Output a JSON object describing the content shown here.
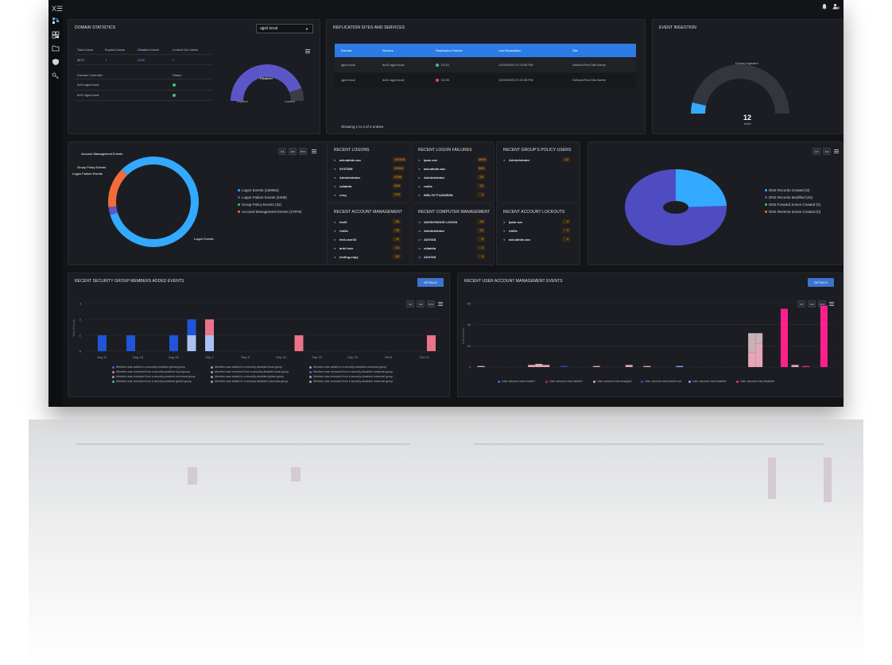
{
  "topbar": {
    "bell_icon": "bell-icon",
    "user_icon": "user-settings-icon"
  },
  "sidebar": {
    "items": [
      "expand-icon",
      "hierarchy-icon",
      "grid-icon",
      "folder-icon",
      "shield-icon",
      "key-icon"
    ],
    "expand_label": "X☰"
  },
  "domain_stats": {
    "title": "DOMAIN STATISTICS",
    "domain_select": "ajpcl.local",
    "headers": [
      "Total Users",
      "Expired Users",
      "Disabled Users",
      "Locked Out Users"
    ],
    "values": [
      "5872",
      "1",
      "6056",
      "0"
    ],
    "dc_headers": [
      "Domain Controller",
      "Status"
    ],
    "dcs": [
      "dc00.ajpcl.local",
      "dc01.ajpcl.local"
    ],
    "gauge": {
      "label_disabled": "Disabled",
      "label_expired": "Expired",
      "label_locked": "Locked"
    }
  },
  "replication": {
    "title": "REPLICATION SITES AND SERVICES",
    "headers": [
      "Domain",
      "Servers",
      "Replication Partner",
      "Last Replication",
      "Site"
    ],
    "rows": [
      {
        "domain": "ajpcl.local",
        "server": "dc00.ajpcl.local",
        "partner": "DC01",
        "last": "11/09/2025 07:23:05 PM",
        "site": "Default-First-Site-Name"
      },
      {
        "domain": "ajpcl.local",
        "server": "dc01.ajpcl.local",
        "partner": "DC00",
        "last": "11/09/2025 07:23:35 PM",
        "site": "Default-First-Site-Name"
      }
    ],
    "footer": "Showing 1 to 2 of 2 entries"
  },
  "event_ingestion": {
    "title": "EVENT INGESTION",
    "gauge_label": "Events Ingested",
    "value": "12",
    "unit": "evt/s",
    "fraction": 0.08
  },
  "logon_donut": {
    "range_buttons": [
      "1d",
      "1w",
      "6m"
    ],
    "labels": {
      "account_mgmt": "Account Management Events",
      "group_policy": "Group Policy Events",
      "logon_failure": "Logon Failure Events",
      "logon": "Logon Events"
    },
    "legend": [
      "Logon Events (159094)",
      "Logon Failure Events (5408)",
      "Group Policy Events (32)",
      "Account Management Events (27976)"
    ],
    "colors": [
      "#33a9ff",
      "#5b56c8",
      "#3fc37a",
      "#f26c3a"
    ],
    "values": [
      159094,
      5408,
      32,
      27976
    ]
  },
  "recent_logons": {
    "title": "RECENT LOGONS",
    "rows": [
      [
        "adv.admin.acc",
        "142918"
      ],
      [
        "SYSTEM",
        "10913"
      ],
      [
        "Administrator",
        "4756"
      ],
      [
        "cdiatefa",
        "246"
      ],
      [
        "renq",
        "179"
      ]
    ]
  },
  "recent_logon_failures": {
    "title": "RECENT LOGON FAILURES",
    "rows": [
      [
        "ipam.svc",
        "4804"
      ],
      [
        "adv.admin.acc",
        "559"
      ],
      [
        "Administrator",
        "15"
      ],
      [
        "rmills",
        "11"
      ],
      [
        "WIN-7K7T4JK8R3N",
        "4"
      ]
    ]
  },
  "recent_gp_users": {
    "title": "RECENT GROUP'S POLICY USERS",
    "rows": [
      [
        "Administrator",
        "12"
      ]
    ]
  },
  "recent_account_mgmt": {
    "title": "RECENT ACCOUNT MANAGEMENT",
    "rows": [
      [
        "test3",
        "40"
      ],
      [
        "rmills",
        "28"
      ],
      [
        "test.user33",
        "11"
      ],
      [
        "ariel.love",
        "10"
      ],
      [
        "testing.copy",
        "10"
      ]
    ]
  },
  "recent_computer_mgmt": {
    "title": "RECENT COMPUTER MANAGEMENT",
    "rows": [
      [
        "ANONYMOUS LOGON",
        "15"
      ],
      [
        "Administrator",
        "12"
      ],
      [
        "ADV01$",
        "5"
      ],
      [
        "cdiatefa",
        "4"
      ],
      [
        "ADV02$",
        "3"
      ]
    ]
  },
  "recent_lockouts": {
    "title": "RECENT ACCOUNT LOCKOUTS",
    "rows": [
      [
        "ipam.svc",
        "4"
      ],
      [
        "rmills",
        "3"
      ],
      [
        "adv.admin.acc",
        "2"
      ]
    ]
  },
  "dns_pie": {
    "range_buttons": [
      "1d",
      "1w"
    ],
    "legend": [
      "DNS Records Created (0)",
      "DNS Records Modified (23)",
      "DNS Forward Zones Created (0)",
      "DNS Reverse Zones Created (0)"
    ],
    "colors": [
      "#33a9ff",
      "#5b56c8",
      "#3fc37a",
      "#f26c3a"
    ]
  },
  "sec_group": {
    "title": "RECENT SECURITY GROUP MEMBERS ADDED EVENTS",
    "details": "DETAILS",
    "range_buttons": [
      "1d",
      "1w",
      "6m"
    ],
    "ylabel": "Total Events",
    "yticks": [
      "3",
      "2",
      "1",
      "0"
    ],
    "xticks": [
      "Aug 11",
      "Aug 18",
      "Aug 25",
      "Sep 1",
      "Sep 8",
      "Sep 15",
      "Sep 22",
      "Sep 29",
      "Oct 6",
      "Oct 13"
    ],
    "legend": [
      [
        "Member was added to a security-enabled global group",
        "#2f6fe6"
      ],
      [
        "Member was removed from a security-enabled local group",
        "#e9748a"
      ],
      [
        "Member was removed from a security-enabled universal group",
        "#9aa0a8"
      ],
      [
        "Member was removed from a security-enabled global group",
        "#3fc37a"
      ],
      [
        "Member was added to a security-disabled local group",
        "#9aa0a8"
      ],
      [
        "Member was removed from a security-disabled local group",
        "#9aa0a8"
      ],
      [
        "Member was added to a security-disabled global group",
        "#9aa0a8"
      ],
      [
        "Member was added to a security-disabled universal group",
        "#9aa0a8"
      ],
      [
        "Member was added to a security-disabled universal group",
        "#9aa0a8"
      ],
      [
        "Member was removed from a security-disabled universal group",
        "#2f6fe6"
      ],
      [
        "Member was removed from a security-disabled universal group",
        "#9aa0a8"
      ],
      [
        "Member was removed from a security-disabled universal group",
        "#9aa0a8"
      ]
    ]
  },
  "user_account": {
    "title": "RECENT USER ACCOUNT MANAGEMENT EVENTS",
    "details": "DETAILS",
    "range_buttons": [
      "1d",
      "1w",
      "6m"
    ],
    "ylabel": "Total Events",
    "yticks": [
      "60",
      "40",
      "20",
      "0"
    ],
    "xticks": [
      "Jul 14",
      "Jul 21",
      "Jul 28",
      "Aug 4",
      "Aug 11",
      "Aug 18",
      "Aug 25",
      "Sep 1",
      "Sep 8",
      "Sep 15",
      "Sep 22",
      "Sep 29",
      "Oct 6",
      "Oct 13",
      "Oct 20"
    ],
    "legend": [
      [
        "User account was created",
        "#2f6fe6"
      ],
      [
        "User account was deleted",
        "#b0208a"
      ],
      [
        "User account was changed",
        "#e7a6b5"
      ],
      [
        "User account was locked out",
        "#2c4fbf"
      ],
      [
        "User account was enabled",
        "#7fa6ee"
      ],
      [
        "User account was disabled",
        "#ff1f8e"
      ]
    ]
  },
  "chart_data": [
    {
      "type": "bar",
      "title": "RECENT SECURITY GROUP MEMBERS ADDED EVENTS",
      "ylabel": "Total Events",
      "ylim": [
        0,
        3
      ],
      "categories": [
        "Aug 11",
        "Aug 18",
        "Aug 25",
        "Sep 1",
        "Sep 8",
        "Sep 15",
        "Sep 22",
        "Sep 29",
        "Oct 6",
        "Oct 13"
      ],
      "stacks": [
        {
          "x": 0.05,
          "segments": [
            [
              1,
              "#1f55d6"
            ]
          ]
        },
        {
          "x": 0.13,
          "segments": [
            [
              1,
              "#1f55d6"
            ]
          ]
        },
        {
          "x": 0.25,
          "segments": [
            [
              1,
              "#1f55d6"
            ]
          ]
        },
        {
          "x": 0.3,
          "segments": [
            [
              1,
              "#a9c2f5"
            ],
            [
              1,
              "#1f55d6"
            ]
          ]
        },
        {
          "x": 0.35,
          "segments": [
            [
              1,
              "#a9c2f5"
            ],
            [
              1,
              "#e9748a"
            ]
          ]
        },
        {
          "x": 0.6,
          "segments": [
            [
              1,
              "#e9748a"
            ]
          ]
        },
        {
          "x": 0.97,
          "segments": [
            [
              1,
              "#e9748a"
            ]
          ]
        }
      ]
    },
    {
      "type": "bar",
      "title": "RECENT USER ACCOUNT MANAGEMENT EVENTS",
      "ylabel": "Total Events",
      "ylim": [
        0,
        60
      ],
      "categories": [
        "Jul 14",
        "Jul 21",
        "Jul 28",
        "Aug 4",
        "Aug 11",
        "Aug 18",
        "Aug 25",
        "Sep 1",
        "Sep 8",
        "Sep 15",
        "Sep 22",
        "Sep 29",
        "Oct 6",
        "Oct 13",
        "Oct 20"
      ],
      "stacks": [
        {
          "x": 0.02,
          "segments": [
            [
              1,
              "#e7a6b5"
            ]
          ]
        },
        {
          "x": 0.16,
          "segments": [
            [
              2,
              "#e7a6b5"
            ]
          ]
        },
        {
          "x": 0.18,
          "segments": [
            [
              3,
              "#e7a6b5"
            ]
          ]
        },
        {
          "x": 0.2,
          "segments": [
            [
              2,
              "#e7a6b5"
            ]
          ]
        },
        {
          "x": 0.25,
          "segments": [
            [
              1,
              "#2c4fbf"
            ]
          ]
        },
        {
          "x": 0.34,
          "segments": [
            [
              1,
              "#e7a6b5"
            ]
          ]
        },
        {
          "x": 0.43,
          "segments": [
            [
              2,
              "#e7a6b5"
            ]
          ]
        },
        {
          "x": 0.48,
          "segments": [
            [
              1,
              "#e7a6b5"
            ]
          ]
        },
        {
          "x": 0.57,
          "segments": [
            [
              1,
              "#7fa6ee"
            ]
          ]
        },
        {
          "x": 0.77,
          "segments": [
            [
              14,
              "#e7a6b5"
            ],
            [
              18,
              "#c9b1b9"
            ]
          ]
        },
        {
          "x": 0.79,
          "segments": [
            [
              22,
              "#e7a6b5"
            ],
            [
              10,
              "#c9b1b9"
            ]
          ]
        },
        {
          "x": 0.86,
          "segments": [
            [
              55,
              "#ff1f8e"
            ]
          ]
        },
        {
          "x": 0.89,
          "segments": [
            [
              2,
              "#e7a6b5"
            ]
          ]
        },
        {
          "x": 0.92,
          "segments": [
            [
              1,
              "#ff1f8e"
            ]
          ]
        },
        {
          "x": 0.97,
          "segments": [
            [
              58,
              "#ff1f8e"
            ]
          ]
        }
      ]
    }
  ]
}
